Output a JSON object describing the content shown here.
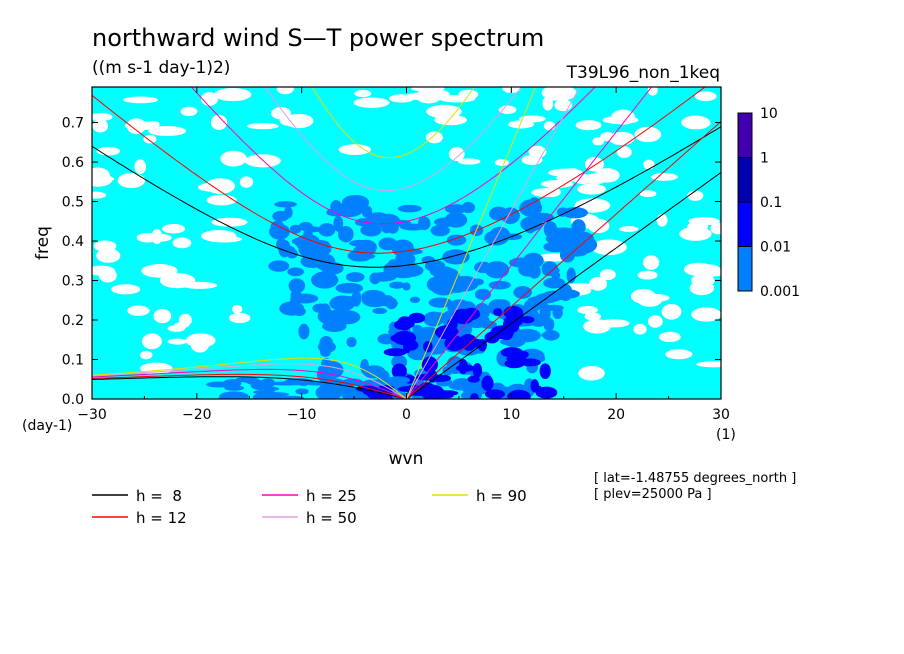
{
  "chart_data": {
    "type": "heatmap",
    "title": "northward wind S—T power spectrum",
    "subtitle": "((m s-1 day-1)2)",
    "run_label": "T39L96_non_1keq",
    "xlabel": "wvn",
    "ylabel": "freq",
    "x_unit": "(1)",
    "y_unit": "(day-1)",
    "xlim": [
      -30,
      30
    ],
    "ylim": [
      0,
      0.79
    ],
    "xticks": [
      -30,
      -20,
      -10,
      0,
      10,
      20,
      30
    ],
    "yticks": [
      0.0,
      0.1,
      0.2,
      0.3,
      0.4,
      0.5,
      0.6,
      0.7
    ],
    "colorbar": {
      "levels": [
        "0.001",
        "0.01",
        "0.1",
        "1",
        "10"
      ],
      "colors": [
        "#00ffff",
        "#0080ff",
        "#0000ff",
        "#0000b0",
        "#4000b0"
      ]
    },
    "dispersion_curves": [
      {
        "name": "h =  8",
        "h": 8,
        "color": "#000000"
      },
      {
        "name": "h = 12",
        "h": 12,
        "color": "#ff0000"
      },
      {
        "name": "h = 25",
        "h": 25,
        "color": "#ff00c0"
      },
      {
        "name": "h = 50",
        "h": 50,
        "color": "#e0a0e0"
      },
      {
        "name": "h = 90",
        "h": 90,
        "color": "#e0e000"
      }
    ],
    "annotations": [
      "[ lat=-1.48755 degrees_north ]",
      "[ plev=25000 Pa ]"
    ]
  }
}
